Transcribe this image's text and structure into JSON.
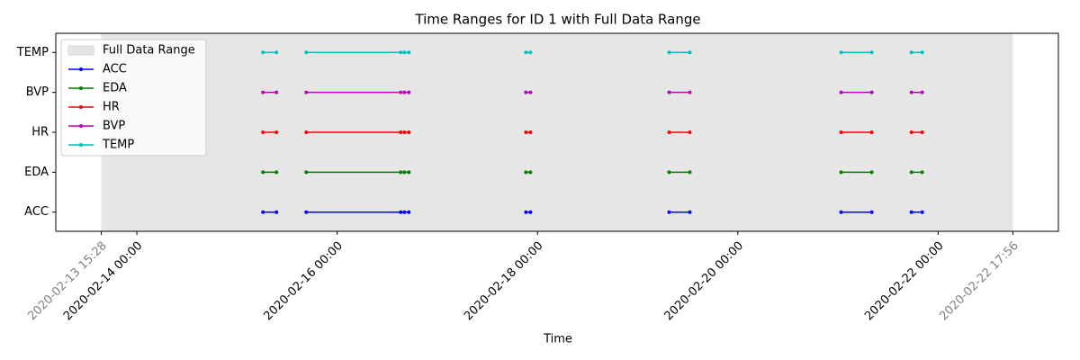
{
  "chart_data": {
    "type": "timeline",
    "title": "Time Ranges for ID 1 with Full Data Range",
    "x_label": "Time",
    "xlim": [
      "2020-02-13 04:34",
      "2020-02-23 04:50"
    ],
    "xticks": [
      "2020-02-14 00:00",
      "2020-02-16 00:00",
      "2020-02-18 00:00",
      "2020-02-20 00:00",
      "2020-02-22 00:00"
    ],
    "full_range": {
      "name": "Full Data Range",
      "color": "#e6e6e6",
      "start": "2020-02-13 15:28",
      "end": "2020-02-22 17:56"
    },
    "legend": "upper left",
    "series": [
      {
        "name": "ACC",
        "color": "#0000ff",
        "segments": [
          [
            "2020-02-15 06:13",
            "2020-02-15 09:27"
          ],
          [
            "2020-02-15 16:35",
            "2020-02-16 15:14"
          ],
          [
            "2020-02-16 16:06",
            "2020-02-16 17:11"
          ],
          [
            "2020-02-17 21:14",
            "2020-02-17 22:19"
          ],
          [
            "2020-02-19 07:33",
            "2020-02-19 12:31"
          ],
          [
            "2020-02-21 00:46",
            "2020-02-21 08:07"
          ],
          [
            "2020-02-21 17:37",
            "2020-02-21 20:12"
          ]
        ]
      },
      {
        "name": "EDA",
        "color": "#008000",
        "segments": [
          [
            "2020-02-15 06:13",
            "2020-02-15 09:27"
          ],
          [
            "2020-02-15 16:35",
            "2020-02-16 15:14"
          ],
          [
            "2020-02-16 16:06",
            "2020-02-16 17:11"
          ],
          [
            "2020-02-17 21:14",
            "2020-02-17 22:19"
          ],
          [
            "2020-02-19 07:33",
            "2020-02-19 12:31"
          ],
          [
            "2020-02-21 00:46",
            "2020-02-21 08:07"
          ],
          [
            "2020-02-21 17:37",
            "2020-02-21 20:12"
          ]
        ]
      },
      {
        "name": "HR",
        "color": "#ff0000",
        "segments": [
          [
            "2020-02-15 06:13",
            "2020-02-15 09:27"
          ],
          [
            "2020-02-15 16:35",
            "2020-02-16 15:14"
          ],
          [
            "2020-02-16 16:06",
            "2020-02-16 17:11"
          ],
          [
            "2020-02-17 21:14",
            "2020-02-17 22:19"
          ],
          [
            "2020-02-19 07:33",
            "2020-02-19 12:31"
          ],
          [
            "2020-02-21 00:46",
            "2020-02-21 08:07"
          ],
          [
            "2020-02-21 17:37",
            "2020-02-21 20:12"
          ]
        ]
      },
      {
        "name": "BVP",
        "color": "#bf00bf",
        "segments": [
          [
            "2020-02-15 06:13",
            "2020-02-15 09:27"
          ],
          [
            "2020-02-15 16:35",
            "2020-02-16 15:14"
          ],
          [
            "2020-02-16 16:06",
            "2020-02-16 17:11"
          ],
          [
            "2020-02-17 21:14",
            "2020-02-17 22:19"
          ],
          [
            "2020-02-19 07:33",
            "2020-02-19 12:31"
          ],
          [
            "2020-02-21 00:46",
            "2020-02-21 08:07"
          ],
          [
            "2020-02-21 17:37",
            "2020-02-21 20:12"
          ]
        ]
      },
      {
        "name": "TEMP",
        "color": "#00bfbf",
        "segments": [
          [
            "2020-02-15 06:13",
            "2020-02-15 09:27"
          ],
          [
            "2020-02-15 16:35",
            "2020-02-16 15:14"
          ],
          [
            "2020-02-16 16:06",
            "2020-02-16 17:11"
          ],
          [
            "2020-02-17 21:14",
            "2020-02-17 22:19"
          ],
          [
            "2020-02-19 07:33",
            "2020-02-19 12:31"
          ],
          [
            "2020-02-21 00:46",
            "2020-02-21 08:07"
          ],
          [
            "2020-02-21 17:37",
            "2020-02-21 20:12"
          ]
        ]
      }
    ]
  }
}
